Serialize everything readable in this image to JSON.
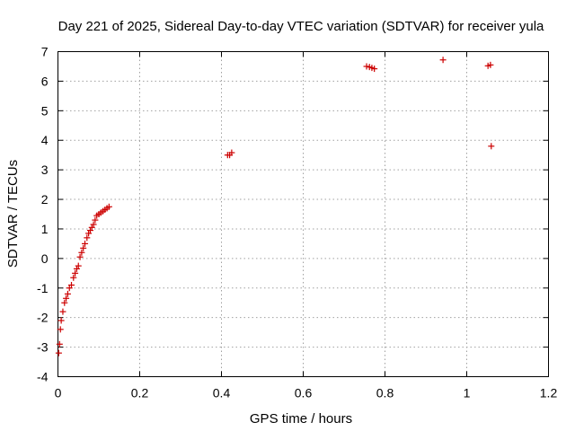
{
  "chart_data": {
    "type": "scatter",
    "title": "Day 221 of 2025, Sidereal Day-to-day VTEC variation (SDTVAR) for receiver yula",
    "xlabel": "GPS time / hours",
    "ylabel": "SDTVAR / TECUs",
    "xlim": [
      0,
      1.2
    ],
    "ylim": [
      -4,
      7
    ],
    "x_ticks": [
      0,
      0.2,
      0.4,
      0.6,
      0.8,
      1,
      1.2
    ],
    "x_tick_labels": [
      "0",
      "0.2",
      "0.4",
      "0.6",
      "0.8",
      "1",
      "1.2"
    ],
    "y_ticks": [
      -4,
      -3,
      -2,
      -1,
      0,
      1,
      2,
      3,
      4,
      5,
      6,
      7
    ],
    "y_tick_labels": [
      "-4",
      "-3",
      "-2",
      "-1",
      "0",
      "1",
      "2",
      "3",
      "4",
      "5",
      "6",
      "7"
    ],
    "grid": true,
    "marker": "+",
    "color": "#cc0000",
    "series": [
      {
        "name": "yula",
        "x": [
          0.002,
          0.004,
          0.006,
          0.008,
          0.012,
          0.016,
          0.02,
          0.024,
          0.028,
          0.033,
          0.038,
          0.042,
          0.046,
          0.05,
          0.054,
          0.058,
          0.062,
          0.066,
          0.071,
          0.075,
          0.079,
          0.083,
          0.087,
          0.091,
          0.095,
          0.1,
          0.105,
          0.11,
          0.115,
          0.12,
          0.125,
          0.415,
          0.42,
          0.425,
          0.755,
          0.762,
          0.768,
          0.774,
          0.942,
          1.052,
          1.058,
          1.06
        ],
        "y": [
          -3.2,
          -2.9,
          -2.4,
          -2.1,
          -1.8,
          -1.5,
          -1.35,
          -1.2,
          -1.0,
          -0.9,
          -0.65,
          -0.5,
          -0.35,
          -0.25,
          0.05,
          0.2,
          0.35,
          0.5,
          0.7,
          0.85,
          0.95,
          1.05,
          1.15,
          1.3,
          1.45,
          1.5,
          1.55,
          1.6,
          1.65,
          1.7,
          1.75,
          3.5,
          3.5,
          3.58,
          6.5,
          6.48,
          6.45,
          6.42,
          6.72,
          6.52,
          6.55,
          3.8
        ]
      }
    ]
  }
}
